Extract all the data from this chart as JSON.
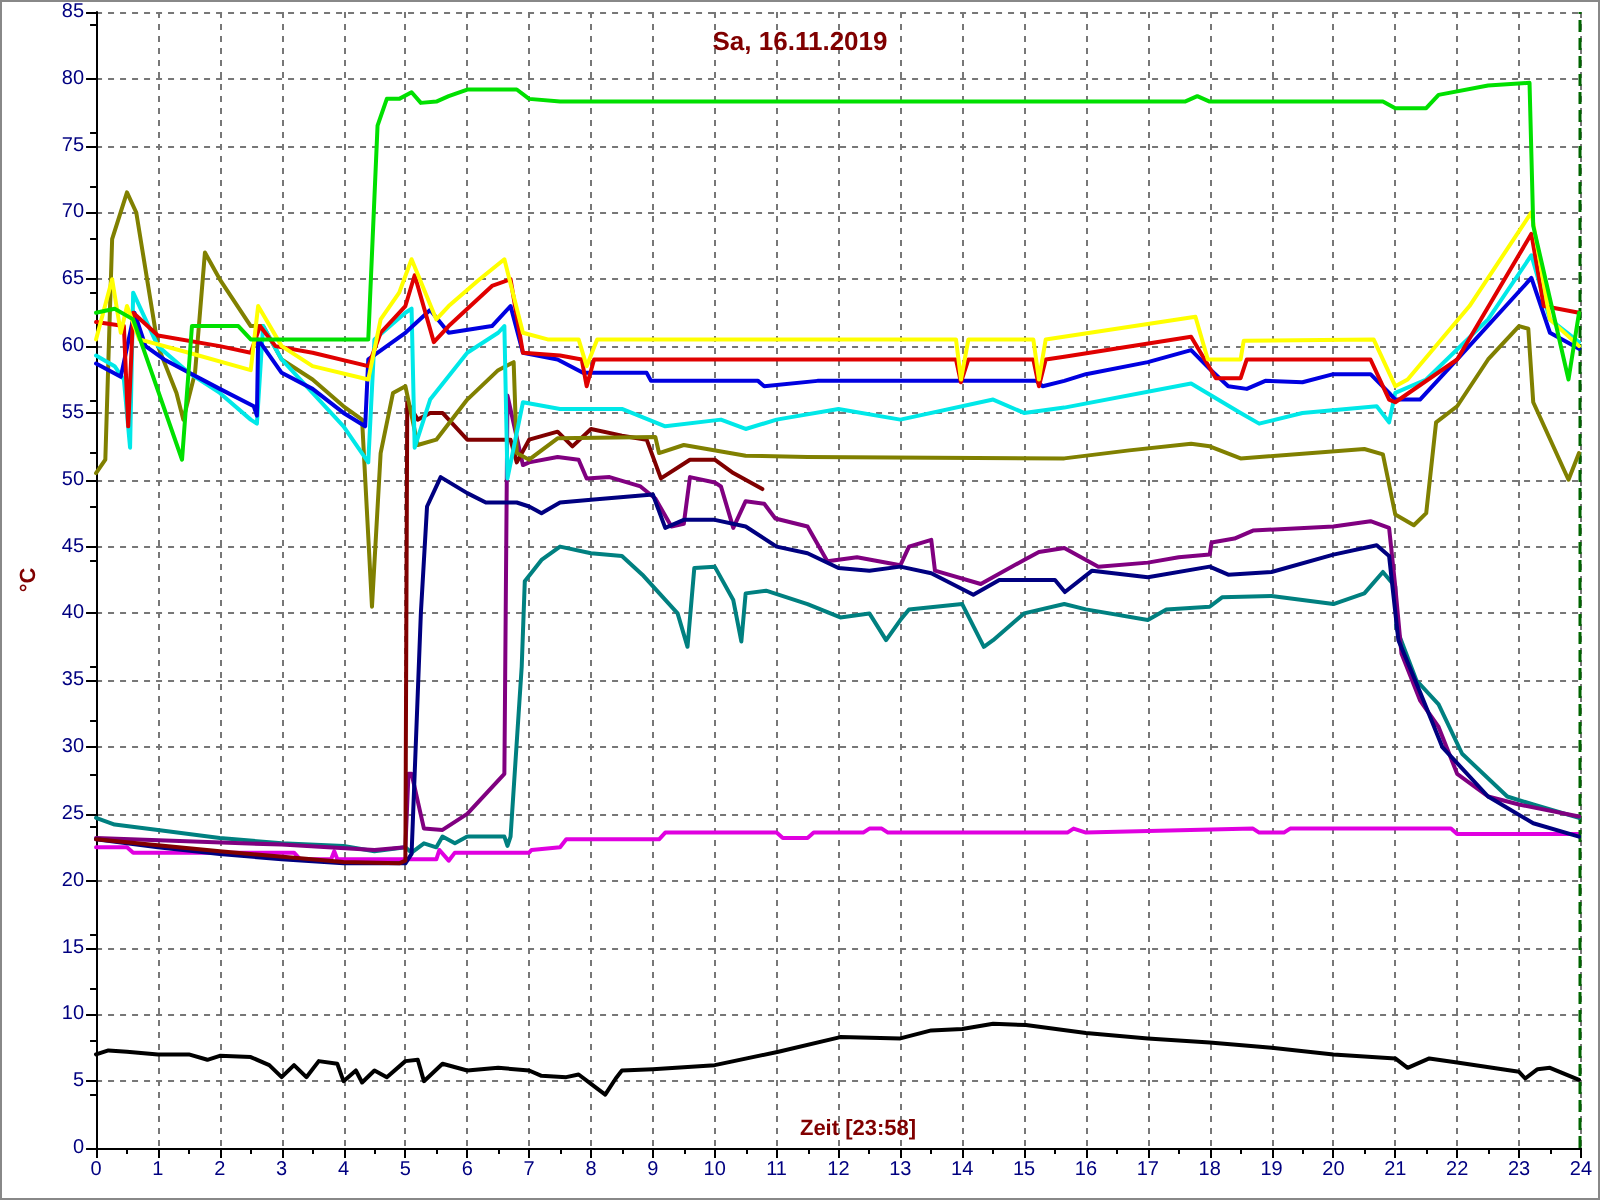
{
  "chart_data": {
    "type": "line",
    "title": "Sa, 16.11.2019",
    "xlabel": "Zeit [23:58]",
    "ylabel": "°C",
    "xlim": [
      0,
      24
    ],
    "xticks": [
      0,
      1,
      2,
      3,
      4,
      5,
      6,
      7,
      8,
      9,
      10,
      11,
      12,
      13,
      14,
      15,
      16,
      17,
      18,
      19,
      20,
      21,
      22,
      23,
      24
    ],
    "ylim": [
      0,
      85
    ],
    "yticks": [
      0,
      5,
      10,
      15,
      20,
      25,
      30,
      35,
      40,
      45,
      50,
      55,
      60,
      65,
      70,
      75,
      80,
      85
    ],
    "grid": true,
    "marker": "none",
    "line_style": "solid",
    "ref_lines": [
      {
        "axis": "x",
        "value": 23.97,
        "color": "#006400",
        "line_style": "dashed"
      }
    ],
    "series": [
      {
        "color": "#00e000",
        "x": [
          0,
          0.3,
          0.6,
          1.39,
          1.55,
          2.3,
          2.5,
          4.4,
          4.55,
          4.7,
          4.9,
          5.1,
          5.25,
          5.5,
          5.7,
          6.0,
          6.8,
          7.0,
          7.5,
          17.6,
          17.8,
          18.0,
          20.8,
          21.0,
          21.5,
          21.7,
          22.5,
          23.17,
          23.23,
          23.8,
          23.97
        ],
        "values": [
          62.5,
          62.8,
          62,
          51.5,
          61.5,
          61.5,
          60.5,
          60.5,
          76.5,
          78.5,
          78.5,
          79,
          78.2,
          78.3,
          78.7,
          79.2,
          79.2,
          78.5,
          78.3,
          78.3,
          78.7,
          78.3,
          78.3,
          77.8,
          77.8,
          78.8,
          79.5,
          79.7,
          69,
          57.5,
          62.5
        ]
      },
      {
        "color": "#ffff00",
        "x": [
          0,
          0.26,
          0.4,
          0.5,
          0.7,
          1.5,
          2.5,
          2.62,
          3.0,
          3.5,
          4.4,
          4.6,
          4.9,
          5.1,
          5.5,
          5.7,
          6.2,
          6.6,
          6.9,
          7.3,
          7.8,
          7.93,
          8.1,
          13.9,
          13.98,
          14.1,
          15.15,
          15.24,
          15.35,
          17.77,
          17.97,
          18.5,
          18.55,
          20.65,
          21.0,
          21.2,
          22.2,
          23.2,
          23.5,
          23.97
        ],
        "values": [
          60.5,
          65,
          61,
          63,
          60.5,
          59.5,
          58.2,
          63,
          60,
          58.5,
          57.5,
          62,
          64,
          66.5,
          62,
          63,
          65,
          66.5,
          61,
          60.5,
          60.5,
          58.5,
          60.5,
          60.5,
          57.5,
          60.5,
          60.5,
          57.5,
          60.5,
          62.2,
          59,
          59,
          60.4,
          60.5,
          57,
          57.5,
          63,
          70,
          62,
          60
        ]
      },
      {
        "color": "#e00000",
        "x": [
          0,
          0.45,
          0.52,
          0.6,
          1,
          2,
          2.5,
          2.65,
          2.9,
          3.5,
          4.4,
          4.6,
          5.0,
          5.15,
          5.46,
          5.7,
          6.4,
          6.7,
          6.9,
          7.5,
          7.85,
          7.93,
          8.05,
          13.9,
          13.98,
          14.1,
          15.15,
          15.24,
          15.35,
          15.65,
          17.7,
          18.1,
          18.5,
          18.6,
          20.6,
          20.9,
          21.0,
          22.0,
          23.2,
          23.4,
          23.97
        ],
        "values": [
          61.8,
          61.5,
          54,
          62.5,
          60.8,
          60,
          59.5,
          61.5,
          60,
          59.5,
          58.5,
          61,
          63,
          65.3,
          60.3,
          61.5,
          64.5,
          65,
          59.5,
          59.3,
          59,
          57,
          59,
          59,
          57.3,
          59,
          59,
          57,
          59,
          59.2,
          60.7,
          57.6,
          57.6,
          59,
          59,
          56,
          55.8,
          59,
          68.4,
          63,
          62.5
        ]
      },
      {
        "color": "#0000e0",
        "x": [
          0,
          0.4,
          0.62,
          0.8,
          1.1,
          2,
          2.55,
          2.6,
          2.62,
          3,
          3.5,
          4.0,
          4.35,
          4.4,
          5.0,
          5.4,
          5.7,
          6.4,
          6.7,
          6.9,
          7.46,
          7.87,
          8.9,
          8.97,
          10.7,
          10.8,
          11.66,
          15.2,
          15.3,
          15.65,
          16.0,
          17.0,
          17.7,
          18.0,
          18.3,
          18.6,
          18.9,
          19.5,
          20.0,
          20.6,
          20.9,
          21.0,
          21.4,
          22.0,
          23.2,
          23.5,
          23.97
        ],
        "values": [
          58.7,
          57.7,
          62.5,
          60,
          59,
          56.8,
          55.5,
          54.8,
          60.5,
          58,
          56.8,
          55,
          54,
          59,
          61,
          62.7,
          61,
          61.5,
          63,
          59.5,
          59,
          58,
          58,
          57.4,
          57.4,
          57,
          57.4,
          57.4,
          57,
          57.4,
          57.9,
          58.8,
          59.7,
          58.3,
          57,
          56.8,
          57.4,
          57.3,
          57.9,
          57.9,
          56.5,
          56,
          56,
          59,
          65.1,
          61,
          59.8
        ]
      },
      {
        "color": "#00e8e8",
        "x": [
          0,
          0.3,
          0.45,
          0.55,
          0.6,
          1.0,
          1.5,
          2,
          2.5,
          2.6,
          2.7,
          3.0,
          3.5,
          4.0,
          4.4,
          4.5,
          5.0,
          5.1,
          5.15,
          5.4,
          6.0,
          6.5,
          6.6,
          6.65,
          6.9,
          7.5,
          8.5,
          9.2,
          10.1,
          10.5,
          11,
          12,
          13,
          14.5,
          15,
          15.65,
          17.7,
          18.5,
          18.8,
          19.5,
          20.7,
          20.9,
          21.0,
          21.5,
          22.5,
          23.2,
          23.5,
          23.97
        ],
        "values": [
          59.3,
          58.5,
          57.5,
          52.4,
          64,
          60,
          58,
          56.5,
          54.5,
          54.2,
          61.5,
          59,
          56.5,
          54,
          51.3,
          60.5,
          62.5,
          62.8,
          52.4,
          56,
          59.5,
          61,
          61.5,
          50.1,
          55.8,
          55.3,
          55.3,
          54,
          54.5,
          53.8,
          54.5,
          55.3,
          54.5,
          56,
          55,
          55.4,
          57.2,
          55,
          54.2,
          55,
          55.5,
          54.3,
          56.5,
          57.5,
          62,
          66.8,
          62,
          60.3
        ]
      },
      {
        "color": "#808000",
        "x": [
          0,
          0.15,
          0.26,
          0.5,
          0.65,
          1.0,
          1.3,
          1.41,
          1.6,
          1.76,
          2.0,
          2.5,
          2.7,
          3.0,
          3.5,
          4.0,
          4.3,
          4.46,
          4.6,
          4.8,
          5.0,
          5.2,
          5.5,
          6.0,
          6.5,
          6.75,
          6.8,
          7.0,
          7.46,
          9.04,
          9.1,
          9.5,
          10.5,
          11.5,
          15.65,
          16.7,
          17.7,
          18.0,
          18.5,
          20.5,
          20.8,
          21.0,
          21.3,
          21.5,
          21.66,
          22.0,
          22.5,
          23.0,
          23.15,
          23.23,
          23.8,
          23.97
        ],
        "values": [
          50.5,
          51.5,
          68,
          71.5,
          70,
          60,
          56.5,
          54.5,
          58,
          67,
          65,
          61.5,
          61.5,
          59,
          57.5,
          55.5,
          54.5,
          40.5,
          52,
          56.5,
          57,
          52.6,
          53,
          56,
          58.2,
          58.8,
          52,
          51.5,
          53.1,
          53.2,
          52,
          52.6,
          51.8,
          51.7,
          51.6,
          52.2,
          52.7,
          52.5,
          51.6,
          52.3,
          51.9,
          47.4,
          46.6,
          47.5,
          54.3,
          55.5,
          59,
          61.5,
          61.3,
          55.8,
          50,
          52
        ]
      },
      {
        "color": "#800000",
        "x": [
          0,
          2,
          4,
          4.9,
          5.0,
          5.03,
          5.2,
          5.4,
          5.6,
          6.0,
          6.7,
          6.8,
          7.0,
          7.46,
          7.7,
          8.0,
          8.5,
          8.9,
          9.13,
          9.6,
          10.0,
          10.3,
          10.77
        ],
        "values": [
          23.1,
          22.2,
          21.4,
          21.3,
          21.5,
          55.8,
          54.5,
          55,
          55,
          53,
          53,
          51.3,
          53,
          53.6,
          52.5,
          53.8,
          53.3,
          53,
          50.1,
          51.5,
          51.5,
          50.5,
          49.3
        ]
      },
      {
        "color": "#000080",
        "x": [
          0,
          1,
          2,
          3,
          4,
          5.0,
          5.1,
          5.15,
          5.25,
          5.35,
          5.57,
          6.0,
          6.3,
          6.8,
          7.0,
          7.2,
          7.5,
          8.0,
          9.0,
          9.2,
          9.5,
          10.0,
          10.5,
          11.0,
          11.5,
          12.0,
          12.5,
          13.0,
          13.5,
          14.18,
          14.6,
          15.5,
          15.66,
          16.1,
          17.0,
          18.0,
          18.3,
          19.0,
          20.0,
          20.7,
          20.9,
          21.05,
          21.41,
          21.76,
          22.5,
          23.23,
          23.97
        ],
        "values": [
          23.1,
          22.5,
          22,
          21.6,
          21.3,
          21.3,
          22,
          28,
          40,
          48,
          50.2,
          49,
          48.3,
          48.3,
          48,
          47.5,
          48.3,
          48.5,
          48.9,
          46.4,
          47,
          47,
          46.5,
          45,
          44.5,
          43.4,
          43.2,
          43.5,
          43,
          41.4,
          42.5,
          42.5,
          41.6,
          43.2,
          42.7,
          43.5,
          42.9,
          43.1,
          44.4,
          45.1,
          44.3,
          38,
          34,
          30,
          26.3,
          24.3,
          23.3
        ]
      },
      {
        "color": "#800080",
        "x": [
          0,
          3,
          4.5,
          5.0,
          5.05,
          5.1,
          5.3,
          5.6,
          6.0,
          6.3,
          6.6,
          6.62,
          6.65,
          6.9,
          7.0,
          7.46,
          7.8,
          7.93,
          8.3,
          8.8,
          9.04,
          9.3,
          9.5,
          9.6,
          10.0,
          10.1,
          10.3,
          10.5,
          10.8,
          10.98,
          11.5,
          11.82,
          12.3,
          13.0,
          13.14,
          13.5,
          13.56,
          14.3,
          15.0,
          15.24,
          15.65,
          16.2,
          17.0,
          17.5,
          18.0,
          18.03,
          18.4,
          18.7,
          20.0,
          20.6,
          20.9,
          21.0,
          21.1,
          21.4,
          21.7,
          22.0,
          22.5,
          23.0,
          23.97
        ],
        "values": [
          23.2,
          22.7,
          22.3,
          22.5,
          28,
          28,
          23.9,
          23.8,
          25,
          26.5,
          28,
          28,
          56.3,
          51.1,
          51.3,
          51.7,
          51.5,
          50.1,
          50.2,
          49.5,
          48.6,
          46.5,
          46.7,
          50.2,
          49.8,
          49.5,
          46.4,
          48.4,
          48.2,
          47.1,
          46.5,
          43.9,
          44.2,
          43.6,
          45,
          45.5,
          43.2,
          42.2,
          44,
          44.6,
          44.9,
          43.5,
          43.8,
          44.2,
          44.4,
          45.3,
          45.6,
          46.2,
          46.5,
          46.9,
          46.4,
          42,
          37,
          33.5,
          31.5,
          28,
          26.3,
          25.7,
          24.8
        ]
      },
      {
        "color": "#008080",
        "x": [
          0,
          0.3,
          1.0,
          1.5,
          2,
          3,
          4,
          4.5,
          5.0,
          5.1,
          5.3,
          5.5,
          5.6,
          5.8,
          6.0,
          6.6,
          6.65,
          6.7,
          6.88,
          6.93,
          7.2,
          7.5,
          8.0,
          8.5,
          8.83,
          9.4,
          9.56,
          9.67,
          10.0,
          10.3,
          10.43,
          10.5,
          10.83,
          11.5,
          12.03,
          12.5,
          12.77,
          13.0,
          13.14,
          14.0,
          14.35,
          14.5,
          15.0,
          15.65,
          16.0,
          17.0,
          17.3,
          18.0,
          18.2,
          19.0,
          20.0,
          20.5,
          20.8,
          21.0,
          21.02,
          21.34,
          21.7,
          22.08,
          22.81,
          23.23,
          23.97
        ],
        "values": [
          24.7,
          24.2,
          23.8,
          23.5,
          23.2,
          22.8,
          22.6,
          22.2,
          22.5,
          22.1,
          22.8,
          22.5,
          23.3,
          22.8,
          23.3,
          23.3,
          22.6,
          23.3,
          36,
          42.4,
          44,
          45,
          44.5,
          44.3,
          42.9,
          40,
          37.5,
          43.4,
          43.5,
          41,
          37.9,
          41.5,
          41.7,
          40.7,
          39.7,
          40,
          38,
          39.5,
          40.3,
          40.7,
          37.5,
          38,
          40,
          40.7,
          40.3,
          39.5,
          40.3,
          40.5,
          41.2,
          41.3,
          40.7,
          41.5,
          43.1,
          42,
          38.9,
          35,
          33.2,
          29.5,
          26.3,
          25.7,
          24.7
        ]
      },
      {
        "color": "#e000e0",
        "x": [
          0,
          0.5,
          0.6,
          3.2,
          3.3,
          3.8,
          3.85,
          3.9,
          5.5,
          5.55,
          5.7,
          5.8,
          7.0,
          7.04,
          7.5,
          7.6,
          9.1,
          9.2,
          11.0,
          11.1,
          11.5,
          11.6,
          12.4,
          12.5,
          12.7,
          12.8,
          15.7,
          15.8,
          16.0,
          18.7,
          18.8,
          19.2,
          19.3,
          21.9,
          22.0,
          23.97
        ],
        "values": [
          22.5,
          22.5,
          22.1,
          22.1,
          21.6,
          21.6,
          22.2,
          21.6,
          21.6,
          22.3,
          21.5,
          22.1,
          22.1,
          22.3,
          22.5,
          23.1,
          23.1,
          23.6,
          23.6,
          23.2,
          23.2,
          23.6,
          23.6,
          23.9,
          23.9,
          23.6,
          23.6,
          23.9,
          23.6,
          23.9,
          23.6,
          23.6,
          23.9,
          23.9,
          23.5,
          23.5
        ]
      },
      {
        "color": "#000000",
        "x": [
          0,
          0.2,
          0.5,
          1.0,
          1.5,
          1.8,
          2.0,
          2.5,
          2.8,
          3.0,
          3.2,
          3.4,
          3.6,
          3.9,
          4.0,
          4.2,
          4.3,
          4.5,
          4.7,
          5.0,
          5.2,
          5.3,
          5.6,
          6.0,
          6.5,
          7.0,
          7.2,
          7.6,
          7.8,
          8.0,
          8.23,
          8.4,
          8.5,
          9.0,
          10.0,
          11.03,
          12.03,
          13.0,
          13.5,
          14.0,
          14.5,
          15.03,
          16.0,
          17.0,
          18.0,
          19.0,
          20.0,
          21.0,
          21.2,
          21.55,
          22.0,
          23.0,
          23.1,
          23.3,
          23.5,
          23.97
        ],
        "values": [
          7,
          7.3,
          7.2,
          7.0,
          7.0,
          6.6,
          6.9,
          6.8,
          6.2,
          5.3,
          6.2,
          5.3,
          6.5,
          6.3,
          5.0,
          5.8,
          4.9,
          5.8,
          5.3,
          6.5,
          6.6,
          5.0,
          6.3,
          5.8,
          6.0,
          5.8,
          5.4,
          5.3,
          5.5,
          4.8,
          4.0,
          5.2,
          5.8,
          5.9,
          6.2,
          7.2,
          8.3,
          8.2,
          8.8,
          8.9,
          9.3,
          9.2,
          8.6,
          8.2,
          7.9,
          7.5,
          7.0,
          6.7,
          6.0,
          6.7,
          6.4,
          5.7,
          5.2,
          5.9,
          6.0,
          5.1
        ]
      }
    ]
  }
}
